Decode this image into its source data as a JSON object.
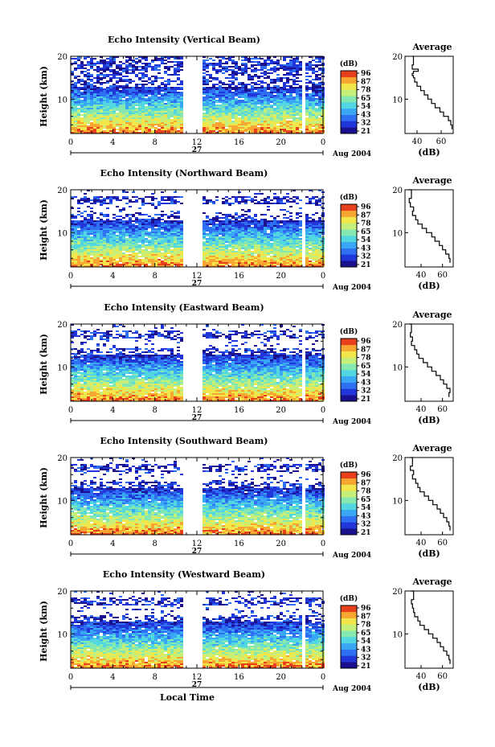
{
  "chart_data": [
    {
      "type": "heatmap",
      "title": "Echo Intensity (Vertical Beam)",
      "ylabel": "Height (km)",
      "yticks": [
        "20",
        "10"
      ],
      "ylim": [
        2,
        20
      ],
      "xticks": [
        "0",
        "4",
        "8",
        "12",
        "16",
        "20",
        "0"
      ],
      "xlim": [
        0,
        24
      ],
      "date_day": "27",
      "date_month_year": "Aug 2004",
      "gaps_hours": [
        [
          10.7,
          12.3
        ],
        [
          21.8,
          22.2
        ]
      ],
      "colorbar": {
        "unit": "(dB)",
        "ticks": [
          "96",
          "87",
          "78",
          "65",
          "54",
          "43",
          "32",
          "21"
        ]
      },
      "profile": {
        "title": "Average",
        "xlabel": "(dB)",
        "xticks": [
          "40",
          "60"
        ],
        "xlim": [
          30,
          70
        ],
        "yticks": [
          "20",
          "10"
        ],
        "heights_km": [
          20,
          18,
          17,
          16.5,
          16,
          15.5,
          15,
          14,
          13,
          12,
          11,
          10,
          9,
          8,
          7,
          6,
          5,
          4,
          3
        ],
        "values_db": [
          36,
          37,
          36,
          41,
          37,
          36,
          37,
          38,
          40,
          43,
          46,
          49,
          52,
          55,
          59,
          62,
          66,
          68,
          69
        ]
      }
    },
    {
      "type": "heatmap",
      "title": "Echo Intensity (Northward Beam)",
      "ylabel": "Height (km)",
      "yticks": [
        "20",
        "10"
      ],
      "ylim": [
        2,
        20
      ],
      "xticks": [
        "0",
        "4",
        "8",
        "12",
        "16",
        "20",
        "0"
      ],
      "xlim": [
        0,
        24
      ],
      "date_day": "27",
      "date_month_year": "Aug 2004",
      "gaps_hours": [
        [
          10.7,
          12.3
        ],
        [
          21.8,
          22.2
        ]
      ],
      "colorbar": {
        "unit": "(dB)",
        "ticks": [
          "96",
          "87",
          "78",
          "65",
          "54",
          "43",
          "32",
          "21"
        ]
      },
      "profile": {
        "title": "Average",
        "xlabel": "(dB)",
        "xticks": [
          "40",
          "60"
        ],
        "xlim": [
          25,
          70
        ],
        "yticks": [
          "20",
          "10"
        ],
        "heights_km": [
          20,
          18,
          17,
          16,
          15,
          14,
          13,
          12,
          11,
          10,
          9,
          8,
          7,
          6,
          5,
          4,
          3
        ],
        "values_db": [
          28,
          31,
          29,
          30,
          33,
          32,
          35,
          37,
          41,
          45,
          50,
          53,
          57,
          60,
          63,
          66,
          67
        ]
      }
    },
    {
      "type": "heatmap",
      "title": "Echo Intensity (Eastward Beam)",
      "ylabel": "Height (km)",
      "yticks": [
        "20",
        "10"
      ],
      "ylim": [
        2,
        20
      ],
      "xticks": [
        "0",
        "4",
        "8",
        "12",
        "16",
        "20",
        "0"
      ],
      "xlim": [
        0,
        24
      ],
      "date_day": "27",
      "date_month_year": "Aug 2004",
      "gaps_hours": [
        [
          10.7,
          12.3
        ],
        [
          21.8,
          22.2
        ]
      ],
      "colorbar": {
        "unit": "(dB)",
        "ticks": [
          "96",
          "87",
          "78",
          "65",
          "54",
          "43",
          "32",
          "21"
        ]
      },
      "profile": {
        "title": "Average",
        "xlabel": "(dB)",
        "xticks": [
          "40",
          "60"
        ],
        "xlim": [
          25,
          70
        ],
        "yticks": [
          "20",
          "10"
        ],
        "heights_km": [
          20,
          18,
          17,
          16,
          15,
          14,
          13,
          12,
          11,
          10,
          9,
          8,
          7,
          6,
          5,
          4,
          3
        ],
        "values_db": [
          29,
          31,
          30,
          32,
          31,
          34,
          36,
          38,
          42,
          46,
          50,
          54,
          58,
          61,
          64,
          67,
          66
        ]
      }
    },
    {
      "type": "heatmap",
      "title": "Echo Intensity (Southward Beam)",
      "ylabel": "Height (km)",
      "yticks": [
        "20",
        "10"
      ],
      "ylim": [
        2,
        20
      ],
      "xticks": [
        "0",
        "4",
        "8",
        "12",
        "16",
        "20",
        "0"
      ],
      "xlim": [
        0,
        24
      ],
      "date_day": "27",
      "date_month_year": "Aug 2004",
      "gaps_hours": [
        [
          10.7,
          12.3
        ],
        [
          21.8,
          22.2
        ]
      ],
      "colorbar": {
        "unit": "(dB)",
        "ticks": [
          "96",
          "87",
          "78",
          "65",
          "54",
          "43",
          "32",
          "21"
        ]
      },
      "profile": {
        "title": "Average",
        "xlabel": "(dB)",
        "xticks": [
          "40",
          "60"
        ],
        "xlim": [
          25,
          70
        ],
        "yticks": [
          "20",
          "10"
        ],
        "heights_km": [
          20,
          18,
          17,
          16,
          15,
          14,
          13,
          12,
          11,
          10,
          9,
          8,
          7,
          6,
          5,
          4,
          3
        ],
        "values_db": [
          30,
          32,
          30,
          33,
          32,
          35,
          37,
          39,
          43,
          47,
          51,
          55,
          58,
          61,
          64,
          66,
          67
        ]
      }
    },
    {
      "type": "heatmap",
      "title": "Echo Intensity (Westward Beam)",
      "ylabel": "Height (km)",
      "yticks": [
        "20",
        "10"
      ],
      "ylim": [
        2,
        20
      ],
      "xticks": [
        "0",
        "4",
        "8",
        "12",
        "16",
        "20",
        "0"
      ],
      "xlim": [
        0,
        24
      ],
      "date_day": "27",
      "date_month_year": "Aug 2004",
      "xlabel": "Local Time",
      "gaps_hours": [
        [
          10.7,
          12.3
        ],
        [
          21.8,
          22.2
        ]
      ],
      "colorbar": {
        "unit": "(dB)",
        "ticks": [
          "96",
          "87",
          "78",
          "65",
          "54",
          "43",
          "32",
          "21"
        ]
      },
      "profile": {
        "title": "Average",
        "xlabel": "(dB)",
        "xticks": [
          "40",
          "60"
        ],
        "xlim": [
          25,
          70
        ],
        "yticks": [
          "20",
          "10"
        ],
        "heights_km": [
          20,
          18,
          17,
          16,
          15,
          14,
          13,
          12,
          11,
          10,
          9,
          8,
          7,
          6,
          5,
          4,
          3
        ],
        "values_db": [
          30,
          33,
          31,
          32,
          33,
          34,
          37,
          39,
          43,
          47,
          51,
          55,
          58,
          61,
          64,
          66,
          67
        ]
      }
    }
  ],
  "colormap": [
    "#1a0f8c",
    "#2136d9",
    "#2f6ff2",
    "#3aa7f5",
    "#52d6e0",
    "#84e8b0",
    "#c6ef7a",
    "#f1e64a",
    "#f7a731",
    "#e8401c"
  ]
}
